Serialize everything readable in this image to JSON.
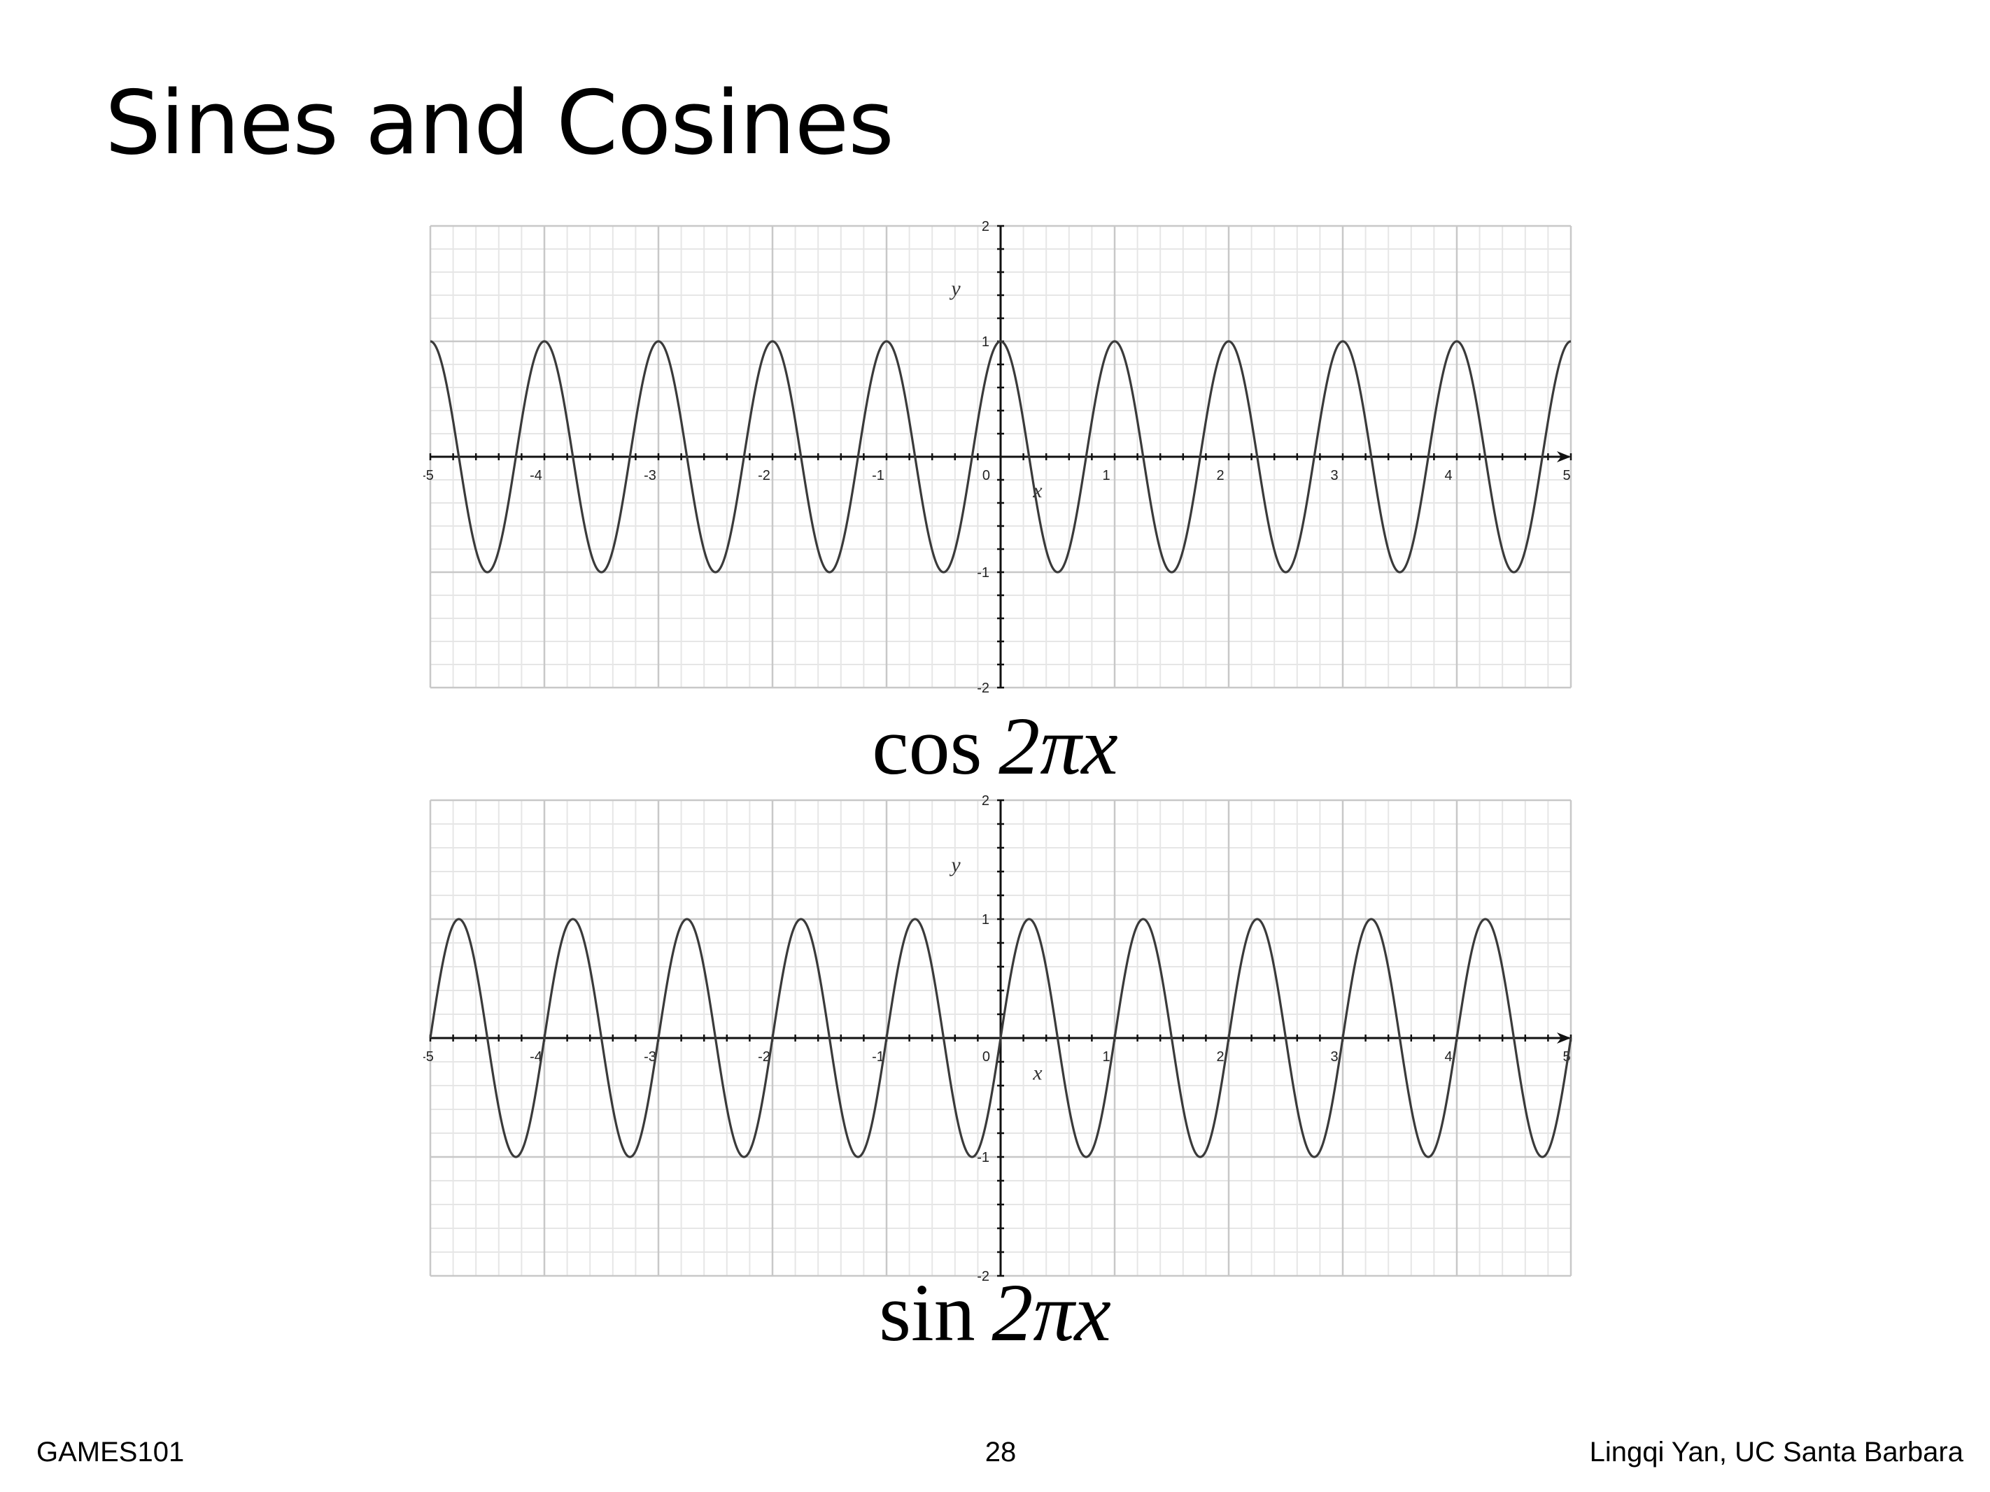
{
  "slide": {
    "title": "Sines and Cosines",
    "footer_left": "GAMES101",
    "page_number": "28",
    "footer_right": "Lingqi Yan, UC Santa Barbara"
  },
  "colors": {
    "curve": "#3a3a3a",
    "axis": "#111111",
    "major_grid": "#c8c8c8",
    "minor_grid": "#e6e6e6",
    "text": "#000000"
  },
  "chart_data": [
    {
      "type": "line",
      "function": "cos(2*pi*x)",
      "formula_fn": "cos",
      "formula_arg": "2πx",
      "xlabel": "x",
      "ylabel": "y",
      "xlim": [
        -5,
        5
      ],
      "ylim": [
        -2,
        2
      ],
      "x_ticks": [
        -5,
        -4,
        -3,
        -2,
        -1,
        0,
        1,
        2,
        3,
        4,
        5
      ],
      "x_tick_labels": [
        "-5",
        "-4",
        "-3",
        "-2",
        "-1",
        "0",
        "1",
        "2",
        "3",
        "4",
        "5"
      ],
      "y_ticks": [
        -2,
        -1,
        1,
        2
      ],
      "y_tick_labels": [
        "-2",
        "-1",
        "1",
        "2"
      ],
      "grid": true,
      "frequency": 1,
      "amplitude": 1,
      "phase": "cos"
    },
    {
      "type": "line",
      "function": "sin(2*pi*x)",
      "formula_fn": "sin",
      "formula_arg": "2πx",
      "xlabel": "x",
      "ylabel": "y",
      "xlim": [
        -5,
        5
      ],
      "ylim": [
        -2,
        2
      ],
      "x_ticks": [
        -5,
        -4,
        -3,
        -2,
        -1,
        0,
        1,
        2,
        3,
        4,
        5
      ],
      "x_tick_labels": [
        "-5",
        "-4",
        "-3",
        "-2",
        "-1",
        "0",
        "1",
        "2",
        "3",
        "4",
        "5"
      ],
      "y_ticks": [
        -2,
        -1,
        1,
        2
      ],
      "y_tick_labels": [
        "-2",
        "-1",
        "1",
        "2"
      ],
      "grid": true,
      "frequency": 1,
      "amplitude": 1,
      "phase": "sin"
    }
  ]
}
